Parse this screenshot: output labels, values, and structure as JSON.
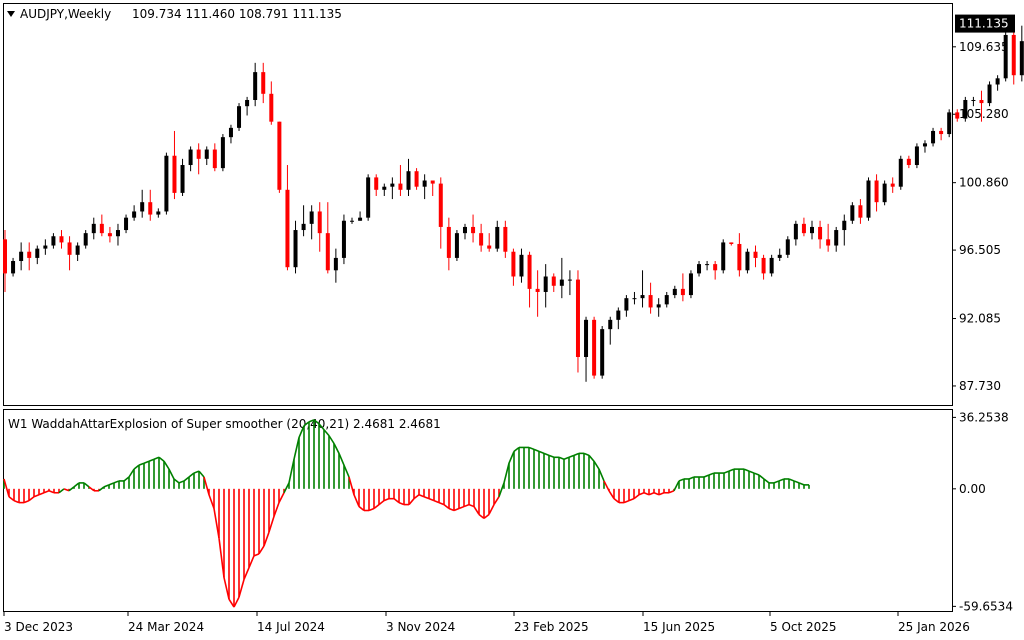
{
  "header": {
    "symbol_timeframe": "AUDJPY,Weekly",
    "ohlc": "109.734 111.460 108.791 111.135"
  },
  "indicator_header": {
    "label": "W1  WaddahAttarExplosion of Super smoother (20,40,21) 2.4681 2.4681"
  },
  "colors": {
    "bull": "#000000",
    "bear": "#ff0000",
    "hist_up": "#008000",
    "hist_down": "#ff0000",
    "axis": "#000000",
    "background": "#ffffff",
    "last_price_tag_bg": "#000000",
    "last_price_tag_fg": "#ffffff"
  },
  "chart_data": [
    {
      "type": "candlestick",
      "title": "AUDJPY,Weekly",
      "ylim": [
        86.5,
        112.4
      ],
      "yticks": [
        "109.635",
        "105.280",
        "100.860",
        "96.505",
        "92.085",
        "87.730"
      ],
      "last_price": "111.135",
      "xticks": [
        "3 Dec 2023",
        "24 Mar 2024",
        "14 Jul 2024",
        "3 Nov 2024",
        "23 Feb 2025",
        "15 Jun 2025",
        "5 Oct 2025",
        "25 Jan 2026"
      ],
      "candles": [
        [
          97.2,
          97.8,
          93.8,
          95.0
        ],
        [
          95.0,
          96.0,
          94.8,
          95.8
        ],
        [
          95.8,
          97.0,
          95.2,
          96.4
        ],
        [
          96.4,
          97.0,
          95.2,
          96.0
        ],
        [
          96.0,
          96.8,
          95.6,
          96.6
        ],
        [
          96.6,
          97.2,
          96.2,
          96.8
        ],
        [
          96.8,
          97.6,
          96.6,
          97.4
        ],
        [
          97.4,
          97.8,
          96.6,
          97.0
        ],
        [
          97.0,
          97.4,
          95.2,
          96.2
        ],
        [
          96.2,
          97.0,
          95.8,
          96.8
        ],
        [
          96.8,
          97.8,
          96.6,
          97.6
        ],
        [
          97.6,
          98.6,
          97.2,
          98.2
        ],
        [
          98.2,
          98.8,
          97.4,
          97.6
        ],
        [
          97.6,
          98.0,
          97.0,
          97.4
        ],
        [
          97.4,
          98.2,
          96.8,
          97.8
        ],
        [
          97.8,
          98.8,
          97.6,
          98.6
        ],
        [
          98.6,
          99.4,
          98.4,
          99.0
        ],
        [
          99.0,
          100.4,
          98.6,
          99.6
        ],
        [
          99.6,
          100.4,
          98.4,
          98.8
        ],
        [
          98.8,
          99.2,
          98.6,
          99.0
        ],
        [
          99.0,
          102.8,
          98.8,
          102.6
        ],
        [
          102.6,
          104.2,
          99.8,
          100.2
        ],
        [
          100.2,
          102.4,
          100.0,
          102.0
        ],
        [
          102.0,
          103.2,
          101.6,
          103.0
        ],
        [
          103.0,
          103.4,
          101.4,
          102.4
        ],
        [
          102.4,
          103.2,
          102.0,
          103.0
        ],
        [
          103.0,
          103.4,
          101.6,
          101.8
        ],
        [
          101.8,
          104.0,
          101.6,
          103.8
        ],
        [
          103.8,
          104.6,
          103.4,
          104.4
        ],
        [
          104.4,
          106.0,
          104.2,
          105.8
        ],
        [
          105.8,
          106.4,
          105.2,
          106.2
        ],
        [
          106.2,
          108.6,
          105.8,
          108.0
        ],
        [
          108.0,
          108.6,
          106.0,
          106.6
        ],
        [
          106.6,
          107.4,
          104.6,
          104.8
        ],
        [
          104.8,
          104.8,
          100.2,
          100.4
        ],
        [
          100.4,
          102.0,
          95.2,
          95.4
        ],
        [
          95.4,
          98.4,
          95.0,
          97.8
        ],
        [
          97.8,
          99.4,
          97.4,
          98.2
        ],
        [
          98.2,
          99.4,
          97.2,
          99.0
        ],
        [
          99.0,
          99.6,
          96.4,
          97.6
        ],
        [
          97.6,
          99.6,
          95.0,
          95.2
        ],
        [
          95.2,
          96.6,
          94.4,
          96.0
        ],
        [
          96.0,
          98.8,
          95.6,
          98.4
        ],
        [
          98.4,
          98.6,
          98.2,
          98.4
        ],
        [
          98.4,
          99.0,
          98.4,
          98.6
        ],
        [
          98.6,
          101.4,
          98.4,
          101.2
        ],
        [
          101.2,
          101.4,
          100.0,
          100.4
        ],
        [
          100.4,
          100.8,
          100.0,
          100.6
        ],
        [
          100.6,
          101.2,
          99.8,
          100.8
        ],
        [
          100.8,
          102.0,
          100.0,
          100.4
        ],
        [
          100.4,
          102.4,
          100.0,
          101.6
        ],
        [
          101.6,
          101.8,
          100.4,
          100.6
        ],
        [
          100.6,
          101.4,
          99.8,
          101.0
        ],
        [
          101.0,
          101.0,
          100.0,
          100.8
        ],
        [
          100.8,
          101.2,
          96.6,
          98.0
        ],
        [
          98.0,
          98.6,
          95.2,
          96.0
        ],
        [
          96.0,
          97.8,
          95.8,
          97.6
        ],
        [
          97.6,
          98.2,
          97.2,
          98.0
        ],
        [
          98.0,
          98.8,
          97.0,
          97.6
        ],
        [
          97.6,
          98.2,
          96.4,
          96.8
        ],
        [
          96.8,
          97.6,
          96.4,
          96.6
        ],
        [
          96.6,
          98.4,
          96.4,
          98.0
        ],
        [
          98.0,
          98.4,
          96.0,
          96.4
        ],
        [
          96.4,
          96.6,
          94.2,
          94.8
        ],
        [
          94.8,
          96.6,
          94.4,
          96.2
        ],
        [
          96.2,
          96.4,
          92.8,
          94.0
        ],
        [
          94.0,
          95.2,
          92.2,
          93.8
        ],
        [
          93.8,
          95.6,
          92.8,
          94.8
        ],
        [
          94.8,
          95.0,
          93.8,
          94.2
        ],
        [
          94.2,
          96.0,
          93.4,
          94.6
        ],
        [
          94.6,
          95.2,
          93.6,
          94.6
        ],
        [
          94.6,
          95.2,
          88.6,
          89.6
        ],
        [
          89.6,
          92.2,
          88.0,
          92.0
        ],
        [
          92.0,
          92.2,
          88.2,
          88.4
        ],
        [
          88.4,
          91.6,
          88.2,
          91.4
        ],
        [
          91.4,
          92.2,
          90.4,
          92.0
        ],
        [
          92.0,
          92.8,
          91.4,
          92.6
        ],
        [
          92.6,
          93.6,
          92.2,
          93.4
        ],
        [
          93.4,
          93.8,
          93.0,
          93.4
        ],
        [
          93.4,
          95.2,
          92.8,
          93.6
        ],
        [
          93.6,
          94.4,
          92.4,
          92.8
        ],
        [
          92.8,
          93.4,
          92.2,
          93.0
        ],
        [
          93.0,
          93.8,
          92.8,
          93.6
        ],
        [
          93.6,
          94.2,
          93.4,
          94.0
        ],
        [
          94.0,
          95.0,
          93.2,
          93.6
        ],
        [
          93.6,
          95.2,
          93.4,
          95.0
        ],
        [
          95.0,
          95.8,
          94.8,
          95.6
        ],
        [
          95.6,
          95.8,
          95.2,
          95.6
        ],
        [
          95.6,
          95.8,
          94.6,
          95.2
        ],
        [
          95.2,
          97.2,
          95.0,
          97.0
        ],
        [
          97.0,
          97.0,
          96.8,
          96.9
        ],
        [
          96.9,
          97.6,
          94.8,
          95.2
        ],
        [
          95.2,
          96.6,
          95.0,
          96.4
        ],
        [
          96.4,
          96.8,
          95.4,
          96.0
        ],
        [
          96.0,
          96.2,
          94.6,
          95.0
        ],
        [
          95.0,
          96.2,
          94.8,
          96.0
        ],
        [
          96.0,
          96.6,
          95.8,
          96.2
        ],
        [
          96.2,
          97.4,
          96.0,
          97.2
        ],
        [
          97.2,
          98.4,
          96.8,
          98.2
        ],
        [
          98.2,
          98.6,
          97.4,
          97.6
        ],
        [
          97.6,
          98.4,
          97.2,
          98.0
        ],
        [
          98.0,
          98.4,
          96.6,
          97.2
        ],
        [
          97.2,
          98.2,
          96.4,
          96.8
        ],
        [
          96.8,
          98.0,
          96.4,
          97.8
        ],
        [
          97.8,
          98.8,
          96.8,
          98.4
        ],
        [
          98.4,
          99.6,
          98.2,
          99.4
        ],
        [
          99.4,
          99.8,
          98.2,
          98.6
        ],
        [
          98.6,
          101.2,
          98.4,
          101.0
        ],
        [
          101.0,
          101.4,
          99.0,
          99.6
        ],
        [
          99.6,
          101.0,
          99.4,
          100.8
        ],
        [
          100.8,
          101.2,
          100.2,
          100.6
        ],
        [
          100.6,
          102.6,
          100.4,
          102.4
        ],
        [
          102.4,
          102.6,
          101.8,
          102.0
        ],
        [
          102.0,
          103.4,
          101.8,
          103.2
        ],
        [
          103.2,
          103.6,
          102.8,
          103.4
        ],
        [
          103.4,
          104.4,
          103.2,
          104.2
        ],
        [
          104.2,
          104.4,
          103.6,
          104.0
        ],
        [
          104.0,
          105.6,
          103.8,
          105.4
        ],
        [
          105.4,
          105.6,
          104.8,
          105.0
        ],
        [
          105.0,
          106.4,
          104.8,
          106.2
        ],
        [
          106.2,
          106.4,
          105.8,
          106.2
        ],
        [
          106.2,
          106.8,
          104.8,
          106.0
        ],
        [
          106.0,
          107.4,
          105.8,
          107.2
        ],
        [
          107.2,
          107.8,
          106.8,
          107.6
        ],
        [
          107.6,
          110.6,
          107.4,
          110.4
        ],
        [
          110.4,
          110.6,
          107.2,
          107.8
        ],
        [
          107.8,
          111.0,
          107.4,
          110.0
        ],
        [
          110.0,
          110.8,
          109.4,
          110.6
        ]
      ]
    },
    {
      "type": "bar",
      "title": "WaddahAttarExplosion of Super smoother (20,40,21)",
      "ylim": [
        -62,
        40
      ],
      "yticks": [
        "36.2538",
        "0.00",
        "-59.6534"
      ],
      "values": [
        5,
        -4,
        -6,
        -7,
        -7,
        -6,
        -4,
        -3,
        -2,
        -1,
        -2,
        -2,
        0,
        -1,
        1,
        3,
        3,
        1,
        -1,
        -1,
        1,
        2,
        3,
        4,
        4,
        6,
        10,
        12,
        13,
        14,
        15,
        16,
        14,
        10,
        5,
        3,
        4,
        6,
        8,
        9,
        6,
        -3,
        -10,
        -25,
        -45,
        -56,
        -60,
        -55,
        -46,
        -40,
        -34,
        -33,
        -29,
        -22,
        -14,
        -7,
        -2,
        3,
        15,
        26,
        32,
        34,
        35,
        33,
        30,
        27,
        23,
        18,
        12,
        6,
        -3,
        -9,
        -11,
        -11,
        -10,
        -8,
        -6,
        -5,
        -5,
        -7,
        -8,
        -8,
        -5,
        -3,
        -4,
        -5,
        -6,
        -7,
        -8,
        -10,
        -11,
        -10,
        -9,
        -8,
        -9,
        -13,
        -15,
        -13,
        -8,
        -4,
        3,
        13,
        19,
        21,
        21,
        21,
        20,
        19,
        18,
        17,
        16,
        16,
        15,
        16,
        17,
        18,
        18,
        17,
        14,
        10,
        4,
        -1,
        -5,
        -7,
        -7,
        -6,
        -5,
        -3,
        -2,
        -3,
        -2,
        -3,
        -2,
        -2,
        -1,
        4,
        5,
        5,
        6,
        6,
        6,
        7,
        8,
        8,
        8,
        9,
        10,
        10,
        10,
        9,
        8,
        7,
        5,
        3,
        3,
        4,
        5,
        5,
        4,
        3,
        2,
        2
      ]
    }
  ]
}
